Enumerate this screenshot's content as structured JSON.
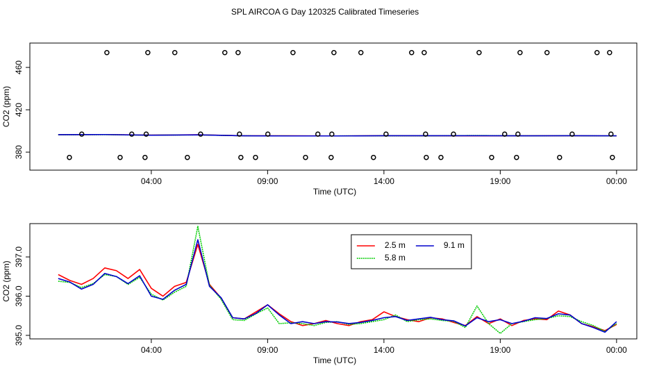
{
  "chart_data": [
    {
      "type": "line",
      "title": "SPL AIRCOA G  Day 120325  Calibrated Timeseries",
      "x_label": "Time (UTC)",
      "y_label": "CO2 (ppm)",
      "xlim": [
        -1.22,
        24.87
      ],
      "ylim": [
        363,
        483
      ],
      "xticks": [
        {
          "value": 4,
          "label": "04:00"
        },
        {
          "value": 9,
          "label": "09:00"
        },
        {
          "value": 14,
          "label": "14:00"
        },
        {
          "value": 19,
          "label": "19:00"
        },
        {
          "value": 24,
          "label": "00:00"
        }
      ],
      "yticks": [
        380,
        420,
        460
      ],
      "x": [
        0,
        2,
        4,
        6,
        8,
        10,
        12,
        14,
        16,
        18,
        20,
        22,
        24
      ],
      "series": [
        {
          "color": "#ff0000",
          "values": [
            396.5,
            396.6,
            396.1,
            396.4,
            395.4,
            395.4,
            395.3,
            395.5,
            395.4,
            395.4,
            395.4,
            395.5,
            395.3
          ]
        },
        {
          "color": "#00cc00",
          "linestyle": "dotted",
          "values": [
            396.4,
            396.5,
            396.0,
            396.3,
            395.4,
            395.3,
            395.3,
            395.4,
            395.4,
            395.7,
            395.4,
            395.5,
            395.3
          ]
        },
        {
          "color": "#0000cc",
          "values": [
            396.5,
            396.6,
            396.0,
            396.3,
            395.4,
            395.3,
            395.3,
            395.5,
            395.5,
            395.5,
            395.4,
            395.5,
            395.4
          ]
        },
        {
          "color": "#000000",
          "style": "points",
          "x": [
            0.48,
            1.01,
            2.09,
            2.66,
            3.16,
            3.73,
            3.78,
            3.85,
            5.01,
            5.55,
            6.12,
            7.16,
            7.73,
            7.79,
            7.85,
            8.48,
            9.01,
            10.09,
            10.63,
            11.16,
            11.73,
            11.76,
            11.85,
            13.01,
            13.55,
            14.09,
            15.19,
            15.73,
            15.79,
            15.82,
            16.45,
            16.99,
            18.09,
            18.63,
            19.19,
            19.7,
            19.76,
            19.85,
            21.01,
            21.55,
            22.09,
            23.16,
            23.7,
            23.76,
            23.82
          ],
          "values": [
            375,
            397,
            474,
            375,
            397,
            375,
            397,
            474,
            474,
            375,
            397,
            474,
            474,
            397,
            375,
            375,
            397,
            474,
            375,
            397,
            375,
            397,
            474,
            474,
            375,
            397,
            474,
            474,
            397,
            375,
            375,
            397,
            474,
            375,
            397,
            375,
            397,
            474,
            474,
            375,
            397,
            474,
            474,
            397,
            375
          ]
        }
      ]
    },
    {
      "type": "line",
      "x_label": "Time (UTC)",
      "y_label": "CO2 (ppm)",
      "xlim": [
        -1.22,
        24.87
      ],
      "ylim": [
        394.91,
        397.85
      ],
      "xticks": [
        {
          "value": 4,
          "label": "04:00"
        },
        {
          "value": 9,
          "label": "09:00"
        },
        {
          "value": 14,
          "label": "14:00"
        },
        {
          "value": 19,
          "label": "19:00"
        },
        {
          "value": 24,
          "label": "00:00"
        }
      ],
      "yticks": [
        {
          "value": 395,
          "label": "395.0"
        },
        {
          "value": 396,
          "label": "396.0"
        },
        {
          "value": 397,
          "label": "397.0"
        }
      ],
      "legend": "top-center",
      "x": [
        0,
        0.5,
        1,
        1.5,
        2,
        2.5,
        3,
        3.5,
        4,
        4.5,
        5,
        5.5,
        6,
        6.5,
        7,
        7.5,
        8,
        8.5,
        9,
        9.5,
        10,
        10.5,
        11,
        11.5,
        12,
        12.5,
        13,
        13.5,
        14,
        14.5,
        15,
        15.5,
        16,
        16.5,
        17,
        17.5,
        18,
        18.5,
        19,
        19.5,
        20,
        20.5,
        21,
        21.5,
        22,
        22.5,
        23,
        23.5,
        24
      ],
      "series": [
        {
          "name": "2.5 m",
          "color": "#ff0000",
          "values": [
            396.55,
            396.4,
            396.3,
            396.45,
            396.72,
            396.65,
            396.45,
            396.68,
            396.2,
            396.0,
            396.25,
            396.35,
            397.32,
            396.3,
            395.95,
            395.45,
            395.42,
            395.6,
            395.78,
            395.55,
            395.35,
            395.25,
            395.3,
            395.38,
            395.3,
            395.25,
            395.35,
            395.4,
            395.6,
            395.48,
            395.4,
            395.35,
            395.45,
            395.42,
            395.33,
            395.25,
            395.48,
            395.3,
            395.42,
            395.25,
            395.38,
            395.42,
            395.4,
            395.62,
            395.52,
            395.3,
            395.22,
            395.12,
            395.28
          ]
        },
        {
          "name": "5.8 m",
          "color": "#00cc00",
          "linestyle": "dotted",
          "values": [
            396.38,
            396.35,
            396.22,
            396.32,
            396.55,
            396.5,
            396.3,
            396.48,
            396.05,
            395.9,
            396.1,
            396.25,
            397.78,
            396.28,
            395.92,
            395.4,
            395.38,
            395.55,
            395.7,
            395.3,
            395.32,
            395.3,
            395.25,
            395.33,
            395.35,
            395.28,
            395.3,
            395.35,
            395.4,
            395.52,
            395.35,
            395.4,
            395.42,
            395.38,
            395.36,
            395.2,
            395.75,
            395.3,
            395.05,
            395.3,
            395.35,
            395.4,
            395.43,
            395.5,
            395.48,
            395.35,
            395.25,
            395.1,
            395.3
          ]
        },
        {
          "name": "9.1 m",
          "color": "#0000cc",
          "values": [
            396.45,
            396.36,
            396.18,
            396.3,
            396.58,
            396.5,
            396.32,
            396.52,
            396.0,
            395.92,
            396.15,
            396.3,
            397.44,
            396.25,
            395.96,
            395.45,
            395.42,
            395.56,
            395.78,
            395.52,
            395.3,
            395.35,
            395.3,
            395.35,
            395.34,
            395.3,
            395.33,
            395.38,
            395.45,
            395.48,
            395.38,
            395.42,
            395.46,
            395.4,
            395.37,
            395.24,
            395.45,
            395.35,
            395.4,
            395.3,
            395.36,
            395.45,
            395.43,
            395.55,
            395.52,
            395.3,
            395.2,
            395.08,
            395.35
          ]
        }
      ]
    }
  ]
}
